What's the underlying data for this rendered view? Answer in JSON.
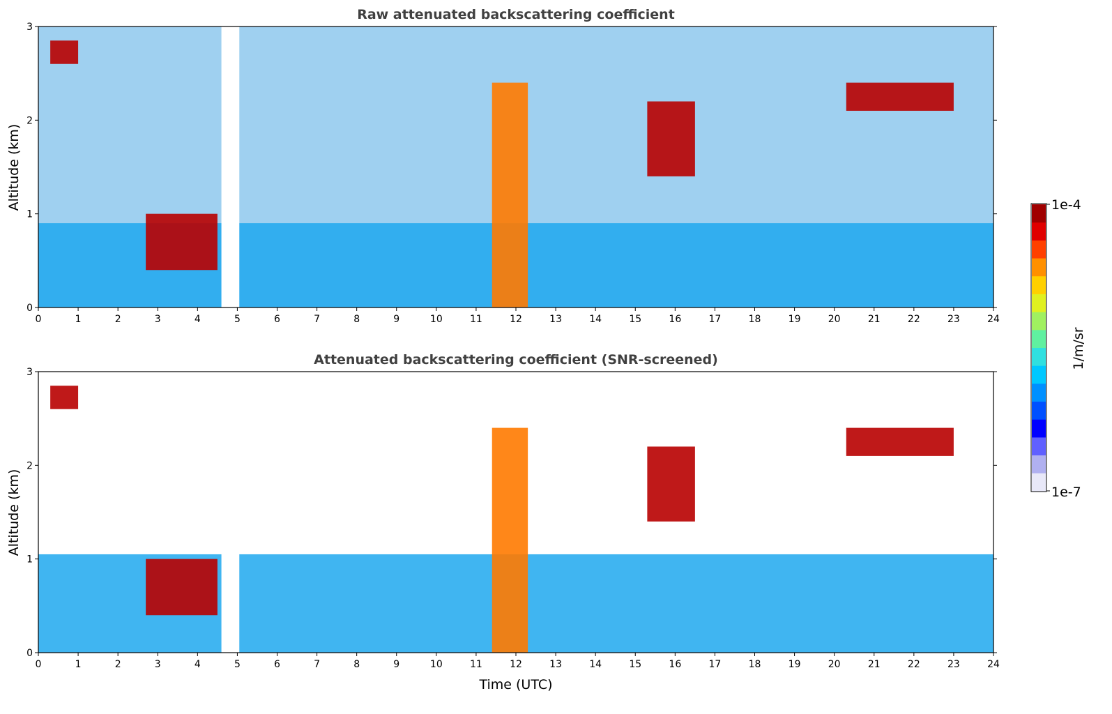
{
  "chart_data": [
    {
      "type": "heatmap",
      "title": "Raw attenuated backscattering coefficient",
      "xlabel": "",
      "ylabel": "Altitude (km)",
      "xlim": [
        0,
        24
      ],
      "ylim": [
        0,
        3
      ],
      "x_ticks": [
        "0",
        "1",
        "2",
        "3",
        "4",
        "5",
        "6",
        "7",
        "8",
        "9",
        "10",
        "11",
        "12",
        "13",
        "14",
        "15",
        "16",
        "17",
        "18",
        "19",
        "20",
        "21",
        "22",
        "23",
        "24"
      ],
      "y_ticks": [
        "0",
        "1",
        "2",
        "3"
      ],
      "data_gap": [
        4.6,
        5.05
      ],
      "layers": [
        {
          "name": "boundary-layer aerosol",
          "top_km": 0.9
        },
        {
          "name": "cloud",
          "start": 0.3,
          "end": 1.0,
          "base_km": 2.6,
          "top_km": 2.85
        },
        {
          "name": "cloud",
          "start": 2.7,
          "end": 4.5,
          "base_km": 0.4,
          "top_km": 1.0
        },
        {
          "name": "precipitation",
          "start": 11.4,
          "end": 12.3,
          "base_km": 0.0,
          "top_km": 2.4
        },
        {
          "name": "cloud",
          "start": 15.3,
          "end": 16.5,
          "base_km": 1.4,
          "top_km": 2.2
        },
        {
          "name": "cloud",
          "start": 20.3,
          "end": 23.0,
          "base_km": 2.1,
          "top_km": 2.4
        }
      ]
    },
    {
      "type": "heatmap",
      "title": "Attenuated backscattering coefficient (SNR-screened)",
      "xlabel": "Time (UTC)",
      "ylabel": "Altitude (km)",
      "xlim": [
        0,
        24
      ],
      "ylim": [
        0,
        3
      ],
      "x_ticks": [
        "0",
        "1",
        "2",
        "3",
        "4",
        "5",
        "6",
        "7",
        "8",
        "9",
        "10",
        "11",
        "12",
        "13",
        "14",
        "15",
        "16",
        "17",
        "18",
        "19",
        "20",
        "21",
        "22",
        "23",
        "24"
      ],
      "y_ticks": [
        "0",
        "1",
        "2",
        "3"
      ],
      "data_gap": [
        4.6,
        5.05
      ],
      "layers": [
        {
          "name": "boundary-layer aerosol",
          "top_km": 1.05
        },
        {
          "name": "cloud",
          "start": 0.3,
          "end": 1.0,
          "base_km": 2.6,
          "top_km": 2.85
        },
        {
          "name": "cloud",
          "start": 2.7,
          "end": 4.5,
          "base_km": 0.4,
          "top_km": 1.0
        },
        {
          "name": "precipitation",
          "start": 11.4,
          "end": 12.3,
          "base_km": 0.0,
          "top_km": 2.4
        },
        {
          "name": "cloud",
          "start": 15.3,
          "end": 16.5,
          "base_km": 1.4,
          "top_km": 2.2
        },
        {
          "name": "cloud",
          "start": 20.3,
          "end": 23.0,
          "base_km": 2.1,
          "top_km": 2.4
        }
      ]
    }
  ],
  "colorbar": {
    "max_label": "1e-4",
    "min_label": "1e-7",
    "unit_label": "1/m/sr",
    "colors": [
      "#e8e8f8",
      "#b0b0f0",
      "#6060ff",
      "#0000ff",
      "#0050ff",
      "#0090ff",
      "#00c8ff",
      "#30e0e0",
      "#60f0a0",
      "#a0f060",
      "#e0f020",
      "#ffd000",
      "#ff9000",
      "#ff4000",
      "#e00000",
      "#a00000"
    ]
  }
}
